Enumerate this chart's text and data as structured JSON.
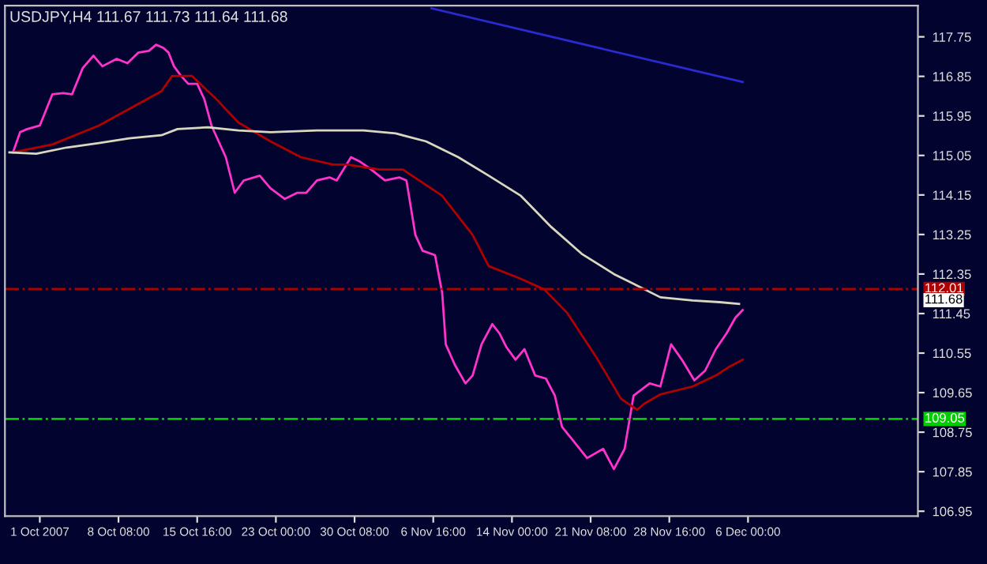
{
  "chart_data": {
    "type": "line",
    "title": "USDJPY,H4 111.67 111.73 111.64 111.68",
    "xlim": [
      "2007-09-27T18:00",
      "2007-12-21T20:00"
    ],
    "ylim": [
      106.84,
      118.46
    ],
    "xticks": [
      {
        "value": "2007-10-01T00:00",
        "label": "1 Oct 2007"
      },
      {
        "value": "2007-10-08T08:00",
        "label": "8 Oct 08:00"
      },
      {
        "value": "2007-10-15T16:00",
        "label": "15 Oct 16:00"
      },
      {
        "value": "2007-10-23T00:00",
        "label": "23 Oct 00:00"
      },
      {
        "value": "2007-10-30T08:00",
        "label": "30 Oct 08:00"
      },
      {
        "value": "2007-11-06T16:00",
        "label": "6 Nov 16:00"
      },
      {
        "value": "2007-11-14T00:00",
        "label": "14 Nov 00:00"
      },
      {
        "value": "2007-11-21T08:00",
        "label": "21 Nov 08:00"
      },
      {
        "value": "2007-11-28T16:00",
        "label": "28 Nov 16:00"
      },
      {
        "value": "2007-12-06T00:00",
        "label": "6 Dec 00:00"
      }
    ],
    "yticks": [
      106.95,
      107.85,
      108.75,
      109.65,
      110.55,
      111.45,
      112.35,
      113.25,
      114.15,
      115.05,
      115.95,
      116.85,
      117.75
    ],
    "grid": false,
    "marker": "none",
    "line_style": "solid",
    "series": [
      {
        "color": "#ff33cc",
        "x": [
          "2007-09-28T12:00",
          "2007-09-29T04:00",
          "2007-09-29T20:00",
          "2007-10-01T00:00",
          "2007-10-02T04:00",
          "2007-10-03T04:00",
          "2007-10-04T00:00",
          "2007-10-05T00:00",
          "2007-10-06T00:00",
          "2007-10-06T20:00",
          "2007-10-08T04:00",
          "2007-10-09T04:00",
          "2007-10-10T04:00",
          "2007-10-11T04:00",
          "2007-10-11T20:00",
          "2007-10-12T12:00",
          "2007-10-13T00:00",
          "2007-10-13T12:00",
          "2007-10-14T04:00",
          "2007-10-14T20:00",
          "2007-10-15T16:00",
          "2007-10-16T08:00",
          "2007-10-17T00:00",
          "2007-10-17T16:00",
          "2007-10-18T08:00",
          "2007-10-19T04:00",
          "2007-10-20T00:00",
          "2007-10-21T12:00",
          "2007-10-22T12:00",
          "2007-10-23T20:00",
          "2007-10-25T00:00",
          "2007-10-25T20:00",
          "2007-10-26T20:00",
          "2007-10-28T00:00",
          "2007-10-28T16:00",
          "2007-10-30T00:00",
          "2007-10-30T20:00",
          "2007-10-31T16:00",
          "2007-11-02T04:00",
          "2007-11-03T12:00",
          "2007-11-04T04:00",
          "2007-11-05T00:00",
          "2007-11-05T16:00",
          "2007-11-06T20:00",
          "2007-11-07T12:00",
          "2007-11-07T20:00",
          "2007-11-08T16:00",
          "2007-11-09T16:00",
          "2007-11-10T08:00",
          "2007-11-11T04:00",
          "2007-11-12T04:00",
          "2007-11-12T20:00",
          "2007-11-13T12:00",
          "2007-11-14T08:00",
          "2007-11-15T04:00",
          "2007-11-16T04:00",
          "2007-11-17T04:00",
          "2007-11-18T00:00",
          "2007-11-18T16:00",
          "2007-11-19T12:00",
          "2007-11-21T00:00",
          "2007-11-22T12:00",
          "2007-11-23T12:00",
          "2007-11-24T12:00",
          "2007-11-25T08:00",
          "2007-11-26T20:00",
          "2007-11-27T20:00",
          "2007-11-28T20:00",
          "2007-11-29T20:00",
          "2007-12-01T00:00",
          "2007-12-02T00:00",
          "2007-12-03T00:00",
          "2007-12-04T00:00",
          "2007-12-04T20:00",
          "2007-12-05T12:00"
        ],
        "values": [
          115.12,
          115.58,
          115.65,
          115.73,
          116.44,
          116.47,
          116.44,
          117.04,
          117.32,
          117.08,
          117.25,
          117.15,
          117.39,
          117.43,
          117.57,
          117.5,
          117.39,
          117.08,
          116.86,
          116.68,
          116.68,
          116.33,
          115.73,
          115.37,
          115.01,
          114.2,
          114.48,
          114.59,
          114.3,
          114.06,
          114.2,
          114.2,
          114.48,
          114.55,
          114.48,
          115.01,
          114.91,
          114.77,
          114.48,
          114.55,
          114.48,
          113.24,
          112.88,
          112.78,
          111.92,
          110.75,
          110.29,
          109.86,
          110.04,
          110.75,
          111.21,
          111.0,
          110.68,
          110.4,
          110.64,
          110.04,
          109.97,
          109.58,
          108.87,
          108.62,
          108.16,
          108.37,
          107.91,
          108.37,
          109.58,
          109.86,
          109.79,
          110.75,
          110.4,
          109.93,
          110.15,
          110.64,
          111.0,
          111.36,
          111.53
        ]
      },
      {
        "color": "#b00000",
        "x": [
          "2007-09-28T12:00",
          "2007-10-02T04:00",
          "2007-10-06T12:00",
          "2007-10-12T08:00",
          "2007-10-13T08:00",
          "2007-10-15T04:00",
          "2007-10-17T08:00",
          "2007-10-19T12:00",
          "2007-10-22T12:00",
          "2007-10-25T08:00",
          "2007-10-28T08:00",
          "2007-10-29T16:00",
          "2007-11-01T16:00",
          "2007-11-03T20:00",
          "2007-11-07T12:00",
          "2007-11-10T08:00",
          "2007-11-11T20:00",
          "2007-11-14T20:00",
          "2007-11-17T00:00",
          "2007-11-19T04:00",
          "2007-11-22T00:00",
          "2007-11-24T04:00",
          "2007-11-25T16:00",
          "2007-11-26T08:00",
          "2007-11-27T20:00",
          "2007-11-30T20:00",
          "2007-12-03T00:00",
          "2007-12-04T08:00",
          "2007-12-05T12:00"
        ],
        "values": [
          115.12,
          115.3,
          115.73,
          116.51,
          116.86,
          116.86,
          116.36,
          115.8,
          115.37,
          115.01,
          114.84,
          114.84,
          114.73,
          114.73,
          114.13,
          113.24,
          112.53,
          112.24,
          112.0,
          111.46,
          110.4,
          109.51,
          109.26,
          109.4,
          109.61,
          109.79,
          110.04,
          110.25,
          110.4
        ]
      },
      {
        "color": "#d8d8c0",
        "x": [
          "2007-09-28T04:00",
          "2007-09-30T16:00",
          "2007-10-03T12:00",
          "2007-10-06T12:00",
          "2007-10-09T08:00",
          "2007-10-12T08:00",
          "2007-10-13T20:00",
          "2007-10-16T16:00",
          "2007-10-19T12:00",
          "2007-10-22T12:00",
          "2007-10-26T20:00",
          "2007-10-31T04:00",
          "2007-11-03T04:00",
          "2007-11-06T00:00",
          "2007-11-09T00:00",
          "2007-11-11T20:00",
          "2007-11-14T20:00",
          "2007-11-17T16:00",
          "2007-11-20T12:00",
          "2007-11-23T12:00",
          "2007-11-25T00:00",
          "2007-11-27T20:00",
          "2007-11-30T20:00",
          "2007-12-03T08:00",
          "2007-12-05T04:00"
        ],
        "values": [
          115.12,
          115.09,
          115.23,
          115.33,
          115.44,
          115.51,
          115.65,
          115.69,
          115.62,
          115.58,
          115.62,
          115.62,
          115.55,
          115.37,
          115.01,
          114.59,
          114.13,
          113.42,
          112.81,
          112.35,
          112.17,
          111.82,
          111.75,
          111.71,
          111.67
        ]
      },
      {
        "color": "#2a2ad0",
        "x": [
          "2007-11-06T12:00",
          "2007-12-05T12:00"
        ],
        "values": [
          118.4,
          116.72
        ]
      }
    ],
    "ref_lines": [
      {
        "axis": "y",
        "value": 112.01,
        "label": "112.01",
        "color": "#b00000",
        "line_style": "dashdot"
      },
      {
        "axis": "y",
        "value": 109.05,
        "label": "109.05",
        "color": "#00cc00",
        "line_style": "dashdot"
      }
    ],
    "annotations": [
      "111.68"
    ]
  }
}
